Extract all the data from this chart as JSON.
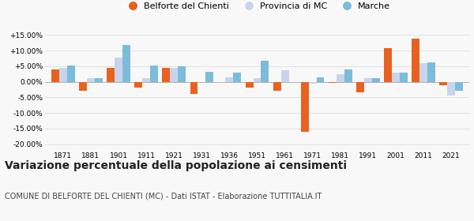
{
  "years": [
    1871,
    1881,
    1901,
    1911,
    1921,
    1931,
    1936,
    1951,
    1961,
    1971,
    1981,
    1991,
    2001,
    2011,
    2021
  ],
  "belforte": [
    4.0,
    -3.0,
    4.4,
    -1.8,
    4.4,
    -3.8,
    -0.2,
    -1.8,
    -2.8,
    -16.2,
    -0.3,
    -3.5,
    10.7,
    13.8,
    -1.2
  ],
  "provincia": [
    4.5,
    1.1,
    7.8,
    1.1,
    4.5,
    0.0,
    1.4,
    1.2,
    3.8,
    -0.5,
    2.5,
    1.1,
    2.8,
    6.0,
    -4.5
  ],
  "marche": [
    5.1,
    1.2,
    11.9,
    5.2,
    5.0,
    3.2,
    3.0,
    6.7,
    0.0,
    1.3,
    4.0,
    1.1,
    3.0,
    6.1,
    -3.0
  ],
  "color_belforte": "#e8621f",
  "color_provincia": "#c8d4ec",
  "color_marche": "#7bbcda",
  "title": "Variazione percentuale della popolazione ai censimenti",
  "subtitle": "COMUNE DI BELFORTE DEL CHIENTI (MC) - Dati ISTAT - Elaborazione TUTTITALIA.IT",
  "ylim": [
    -22,
    17
  ],
  "yticks": [
    -20.0,
    -15.0,
    -10.0,
    -5.0,
    0.0,
    5.0,
    10.0,
    15.0
  ],
  "ytick_labels": [
    "-20.00%",
    "-15.00%",
    "-10.00%",
    "-5.00%",
    "0.00%",
    "+5.00%",
    "+10.00%",
    "+15.00%"
  ],
  "legend_labels": [
    "Belforte del Chienti",
    "Provincia di MC",
    "Marche"
  ],
  "bar_width": 0.28,
  "bg_color": "#f8f8f8",
  "grid_color": "#dddddd",
  "title_fontsize": 10,
  "subtitle_fontsize": 7,
  "tick_fontsize": 6.5,
  "legend_fontsize": 8
}
